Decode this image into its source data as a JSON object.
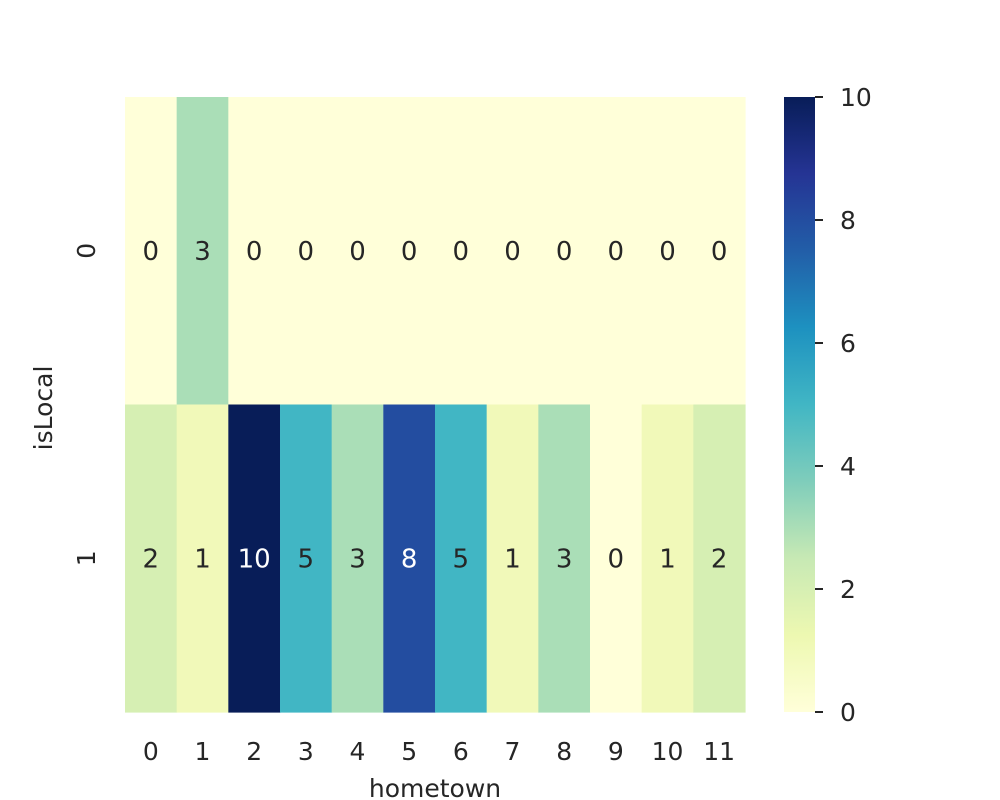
{
  "chart_data": {
    "type": "heatmap",
    "title": "",
    "xlabel": "hometown",
    "ylabel": "isLocal",
    "x_categories": [
      "0",
      "1",
      "2",
      "3",
      "4",
      "5",
      "6",
      "7",
      "8",
      "9",
      "10",
      "11"
    ],
    "y_categories": [
      "0",
      "1"
    ],
    "values": [
      [
        0,
        3,
        0,
        0,
        0,
        0,
        0,
        0,
        0,
        0,
        0,
        0
      ],
      [
        2,
        1,
        10,
        5,
        3,
        8,
        5,
        1,
        3,
        0,
        1,
        2
      ]
    ],
    "annotations": true,
    "colormap": "YlGnBu",
    "colorbar": {
      "range": [
        0,
        10
      ],
      "ticks": [
        "0",
        "2",
        "4",
        "6",
        "8",
        "10"
      ]
    },
    "grid": false
  }
}
